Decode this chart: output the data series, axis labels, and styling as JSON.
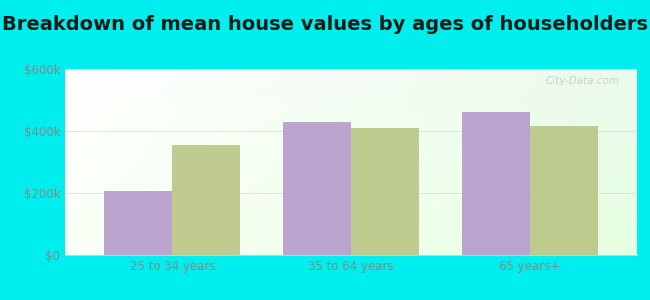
{
  "title": "Breakdown of mean house values by ages of householders",
  "categories": [
    "25 to 34 years",
    "35 to 64 years",
    "65 years+"
  ],
  "bristol_values": [
    205000,
    430000,
    462000
  ],
  "rhode_values": [
    355000,
    410000,
    415000
  ],
  "bristol_color": "#b89fcc",
  "rhode_color": "#bcc98a",
  "ylim": [
    0,
    600000
  ],
  "yticks": [
    0,
    200000,
    400000,
    600000
  ],
  "ytick_labels": [
    "$0",
    "$200k",
    "$400k",
    "$600k"
  ],
  "background_color": "#00eeee",
  "watermark": "City-Data.com",
  "bar_width": 0.38,
  "title_fontsize": 14,
  "tick_color": "#888888",
  "axis_color": "#cccccc",
  "label_color": "#555555"
}
